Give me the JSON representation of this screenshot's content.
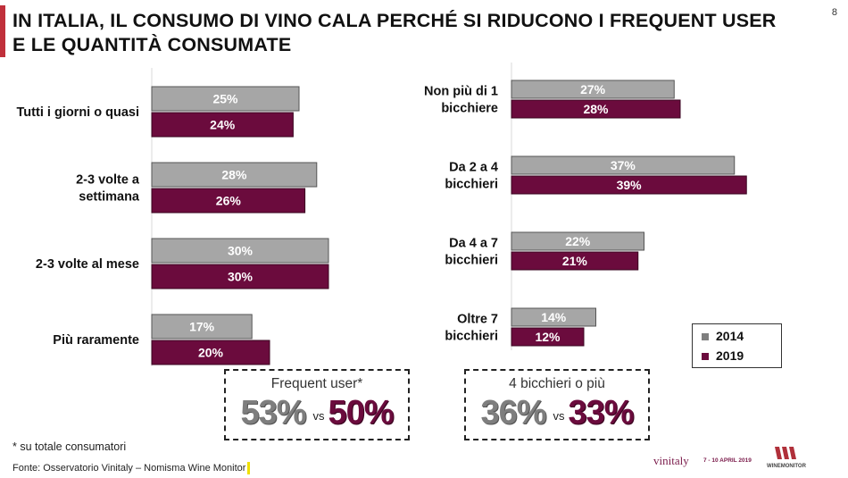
{
  "page": {
    "title_line1": "IN ITALIA, IL CONSUMO DI VINO CALA PERCHÉ SI RIDUCONO I FREQUENT USER",
    "title_line2": "E LE QUANTITÀ CONSUMATE",
    "page_number": "8",
    "footnote": "* su totale consumatori",
    "source": "Fonte: Osservatorio Vinitaly – Nomisma Wine Monitor",
    "logo_vinitaly": "vinitaly",
    "logo_vinitaly_date": "7 - 10 APRIL 2019",
    "logo_winemonitor": "WINEMONITOR"
  },
  "colors": {
    "series_2014": "#a6a6a6",
    "series_2019": "#6b0b3d",
    "accent": "#c0303b"
  },
  "legend": {
    "items": [
      "2014",
      "2019"
    ]
  },
  "callouts": {
    "frequent": {
      "label": "Frequent user*",
      "value_2014": "53%",
      "vs": "vs",
      "value_2019": "50%"
    },
    "quantity": {
      "label": "4 bicchieri o più",
      "value_2014": "36%",
      "vs": "vs",
      "value_2019": "33%"
    }
  },
  "chart_data": [
    {
      "type": "bar",
      "orientation": "horizontal",
      "categories": [
        "Tutti i giorni o quasi",
        "2-3 volte a settimana",
        "2-3 volte al mese",
        "Più raramente"
      ],
      "category_lines": [
        [
          "Tutti i giorni o quasi"
        ],
        [
          "2-3 volte a",
          "settimana"
        ],
        [
          "2-3 volte al mese"
        ],
        [
          "Più raramente"
        ]
      ],
      "series": [
        {
          "name": "2014",
          "values": [
            25,
            28,
            30,
            17
          ],
          "labels": [
            "25%",
            "28%",
            "30%",
            "17%"
          ]
        },
        {
          "name": "2019",
          "values": [
            24,
            26,
            30,
            20
          ],
          "labels": [
            "24%",
            "26%",
            "30%",
            "20%"
          ]
        }
      ],
      "xlim": [
        0,
        40
      ]
    },
    {
      "type": "bar",
      "orientation": "horizontal",
      "categories": [
        "Non più di 1 bicchiere",
        "Da 2 a 4 bicchieri",
        "Da 4 a 7 bicchieri",
        "Oltre 7 bicchieri"
      ],
      "category_lines": [
        [
          "Non più di 1",
          "bicchiere"
        ],
        [
          "Da 2 a 4",
          "bicchieri"
        ],
        [
          "Da 4 a 7",
          "bicchieri"
        ],
        [
          "Oltre 7",
          "bicchieri"
        ]
      ],
      "series": [
        {
          "name": "2014",
          "values": [
            27,
            37,
            22,
            14
          ],
          "labels": [
            "27%",
            "37%",
            "22%",
            "14%"
          ]
        },
        {
          "name": "2019",
          "values": [
            28,
            39,
            21,
            12
          ],
          "labels": [
            "28%",
            "39%",
            "21%",
            "12%"
          ]
        }
      ],
      "xlim": [
        0,
        40
      ],
      "legend": "bottom-right"
    }
  ]
}
